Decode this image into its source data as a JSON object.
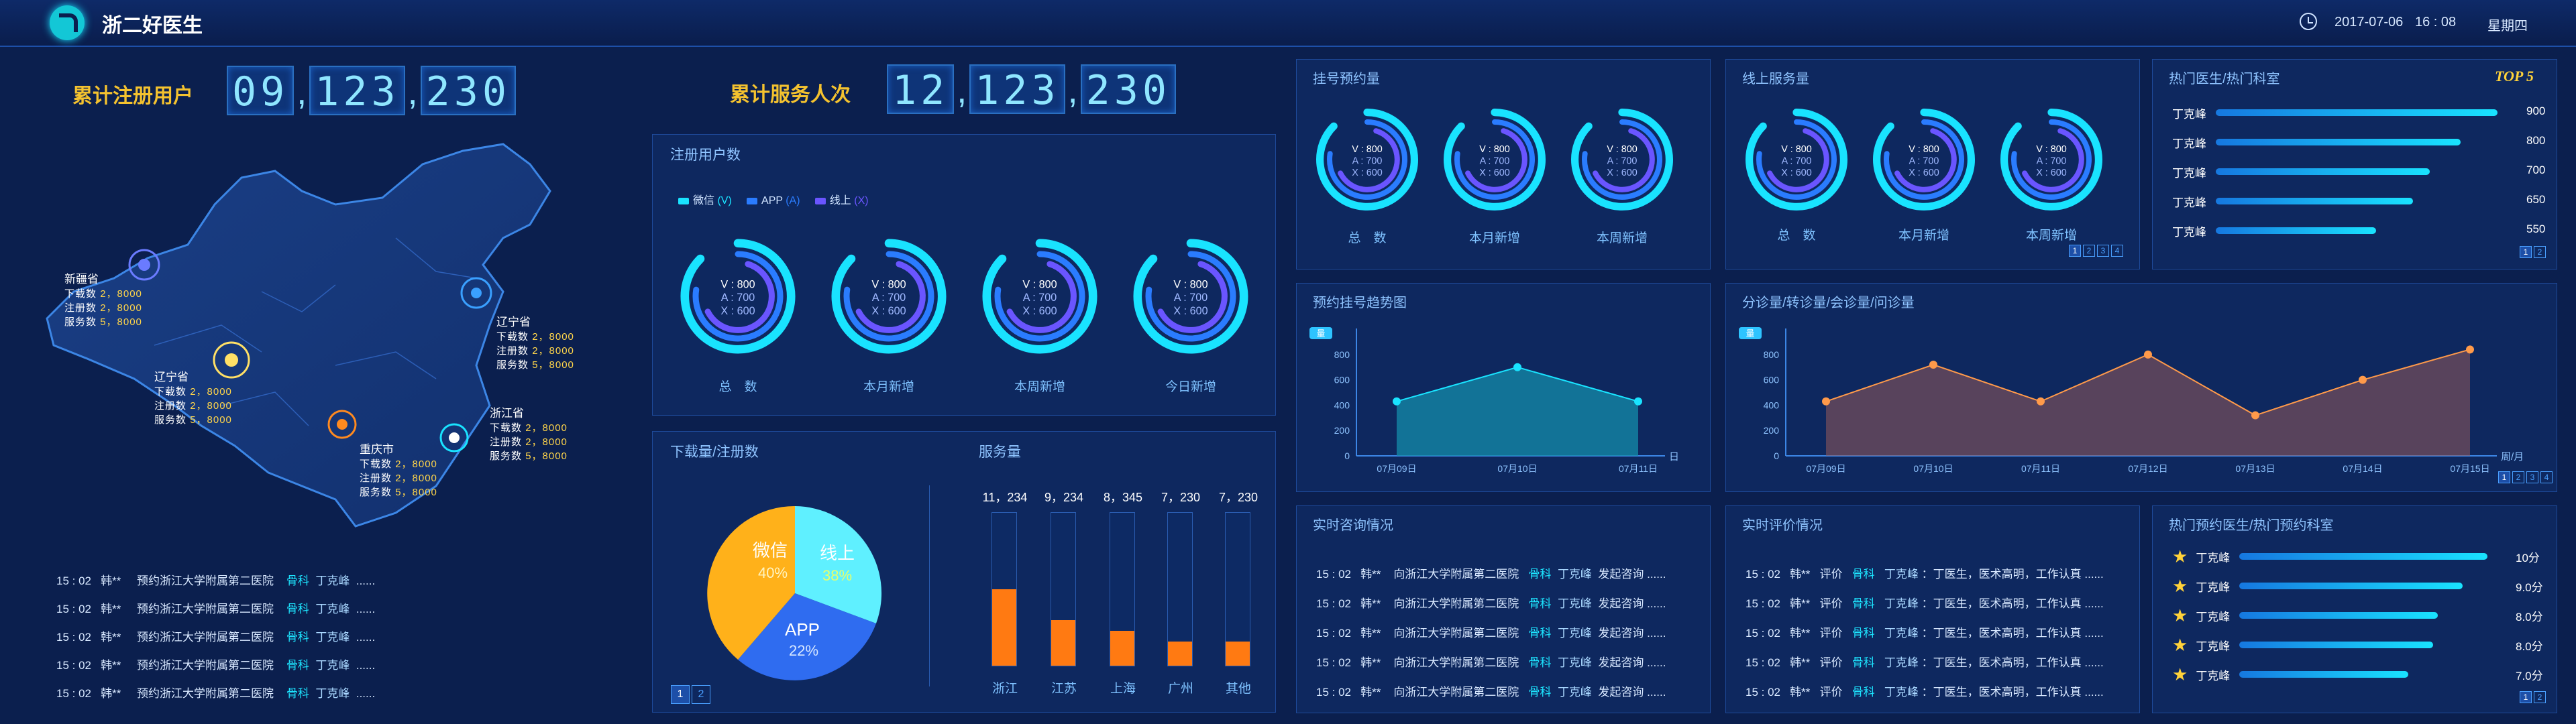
{
  "header": {
    "title": "浙二好医生",
    "date": "2017-07-06",
    "time": "16 : 08",
    "weekday": "星期四"
  },
  "stats": {
    "registered_label": "累计注册用户",
    "registered_groups": [
      "09",
      "123",
      "230"
    ],
    "served_label": "累计服务人次",
    "served_groups": [
      "12",
      "123",
      "230"
    ]
  },
  "map": {
    "cities": [
      {
        "name": "新疆省",
        "lines": [
          {
            "k": "下载数",
            "v": "2，8000"
          },
          {
            "k": "注册数",
            "v": "2，8000"
          },
          {
            "k": "服务数",
            "v": "5，8000"
          }
        ]
      },
      {
        "name": "辽宁省",
        "lines": [
          {
            "k": "下载数",
            "v": "2，8000"
          },
          {
            "k": "注册数",
            "v": "2，8000"
          },
          {
            "k": "服务数",
            "v": "5，8000"
          }
        ]
      },
      {
        "name": "辽宁省",
        "lines": [
          {
            "k": "下载数",
            "v": "2，8000"
          },
          {
            "k": "注册数",
            "v": "2，8000"
          },
          {
            "k": "服务数",
            "v": "5，8000"
          }
        ]
      },
      {
        "name": "重庆市",
        "lines": [
          {
            "k": "下载数",
            "v": "2，8000"
          },
          {
            "k": "注册数",
            "v": "2，8000"
          },
          {
            "k": "服务数",
            "v": "5，8000"
          }
        ]
      },
      {
        "name": "浙江省",
        "lines": [
          {
            "k": "下载数",
            "v": "2，8000"
          },
          {
            "k": "注册数",
            "v": "2，8000"
          },
          {
            "k": "服务数",
            "v": "5，8000"
          }
        ]
      }
    ]
  },
  "appointments_list": [
    {
      "time": "15 : 02",
      "user": "韩**",
      "text": "预约浙江大学附属第二医院",
      "dept": "骨科",
      "doctor": "丁克峰",
      "more": "......"
    },
    {
      "time": "15 : 02",
      "user": "韩**",
      "text": "预约浙江大学附属第二医院",
      "dept": "骨科",
      "doctor": "丁克峰",
      "more": "......"
    },
    {
      "time": "15 : 02",
      "user": "韩**",
      "text": "预约浙江大学附属第二医院",
      "dept": "骨科",
      "doctor": "丁克峰",
      "more": "......"
    },
    {
      "time": "15 : 02",
      "user": "韩**",
      "text": "预约浙江大学附属第二医院",
      "dept": "骨科",
      "doctor": "丁克峰",
      "more": "......"
    },
    {
      "time": "15 : 02",
      "user": "韩**",
      "text": "预约浙江大学附属第二医院",
      "dept": "骨科",
      "doctor": "丁克峰",
      "more": "......"
    }
  ],
  "registered_panel": {
    "title": "注册用户数",
    "legend": [
      {
        "label": "微信",
        "tag": "(V)",
        "color": "#19e3ff"
      },
      {
        "label": "APP",
        "tag": "(A)",
        "color": "#2a7cff"
      },
      {
        "label": "线上",
        "tag": "(X)",
        "color": "#6a55ff"
      }
    ],
    "rings": [
      {
        "label": "总　数",
        "v": "V : 800",
        "a": "A : 700",
        "x": "X : 600"
      },
      {
        "label": "本月新增",
        "v": "V : 800",
        "a": "A : 700",
        "x": "X : 600"
      },
      {
        "label": "本周新增",
        "v": "V : 800",
        "a": "A : 700",
        "x": "X : 600"
      },
      {
        "label": "今日新增",
        "v": "V : 800",
        "a": "A : 700",
        "x": "X : 600"
      }
    ]
  },
  "download_panel": {
    "title": "下载量/注册数",
    "pages": [
      "1",
      "2"
    ]
  },
  "pie_data": {
    "type": "pie",
    "slices": [
      {
        "label": "微信",
        "value": 40,
        "color": "#ffb11a"
      },
      {
        "label": "线上",
        "value": 38,
        "color": "#5ff0ff"
      },
      {
        "label": "APP",
        "value": 22,
        "color": "#2f6cf0"
      }
    ],
    "labels_text": {
      "weixin": "微信",
      "weixin_pct": "40%",
      "online": "线上",
      "online_pct": "38%",
      "app": "APP",
      "app_pct": "22%"
    }
  },
  "service_panel": {
    "title": "服务量"
  },
  "chart_data": [
    {
      "type": "bar",
      "title": "服务量",
      "categories": [
        "浙江",
        "江苏",
        "上海",
        "广州",
        "其他"
      ],
      "values": [
        11234,
        9234,
        8345,
        7230,
        7230
      ],
      "value_labels": [
        "11，234",
        "9，234",
        "8，345",
        "7，230",
        "7，230"
      ],
      "fill_fraction": [
        0.5,
        0.3,
        0.23,
        0.16,
        0.16
      ]
    },
    {
      "type": "area",
      "title": "预约挂号趋势图",
      "badge": "量",
      "x": [
        "07月09日",
        "07月10日",
        "07月11日"
      ],
      "y": [
        430,
        700,
        430
      ],
      "yticks": [
        "0",
        "200",
        "400",
        "600",
        "800"
      ],
      "xunit": "日",
      "ylim": [
        0,
        900
      ]
    },
    {
      "type": "area",
      "title": "分诊量/转诊量/会诊量/问诊量",
      "badge": "量",
      "x": [
        "07月09日",
        "07月10日",
        "07月11日",
        "07月12日",
        "07月13日",
        "07月14日",
        "07月15日"
      ],
      "y": [
        430,
        720,
        430,
        800,
        320,
        600,
        840
      ],
      "yticks": [
        "0",
        "200",
        "400",
        "600",
        "800"
      ],
      "xunit": "周/月",
      "ylim": [
        0,
        900
      ]
    }
  ],
  "booking_panel": {
    "title": "挂号预约量",
    "rings": [
      {
        "label": "总　数",
        "v": "V : 800",
        "a": "A : 700",
        "x": "X : 600"
      },
      {
        "label": "本月新增",
        "v": "V : 800",
        "a": "A : 700",
        "x": "X : 600"
      },
      {
        "label": "本周新增",
        "v": "V : 800",
        "a": "A : 700",
        "x": "X : 600"
      }
    ]
  },
  "online_panel": {
    "title": "线上服务量",
    "rings": [
      {
        "label": "总　数",
        "v": "V : 800",
        "a": "A : 700",
        "x": "X : 600"
      },
      {
        "label": "本月新增",
        "v": "V : 800",
        "a": "A : 700",
        "x": "X : 600"
      },
      {
        "label": "本周新增",
        "v": "V : 800",
        "a": "A : 700",
        "x": "X : 600"
      }
    ],
    "pages": [
      "1",
      "2",
      "3",
      "4"
    ]
  },
  "hot_panel": {
    "title": "热门医生/热门科室",
    "top": "TOP 5",
    "rows": [
      {
        "name": "丁克峰",
        "value": "900",
        "frac": 1.0
      },
      {
        "name": "丁克峰",
        "value": "800",
        "frac": 0.87
      },
      {
        "name": "丁克峰",
        "value": "700",
        "frac": 0.76
      },
      {
        "name": "丁克峰",
        "value": "650",
        "frac": 0.7
      },
      {
        "name": "丁克峰",
        "value": "550",
        "frac": 0.57
      }
    ],
    "pages": [
      "1",
      "2"
    ]
  },
  "trend_panel": {
    "title": "预约挂号趋势图"
  },
  "triage_panel": {
    "title": "分诊量/转诊量/会诊量/问诊量",
    "pages": [
      "1",
      "2",
      "3",
      "4"
    ]
  },
  "consult_panel": {
    "title": "实时咨询情况",
    "rows": [
      {
        "time": "15 : 02",
        "user": "韩**",
        "text": "向浙江大学附属第二医院",
        "dept": "骨科",
        "doctor": "丁克峰",
        "tail": "发起咨询 ......"
      },
      {
        "time": "15 : 02",
        "user": "韩**",
        "text": "向浙江大学附属第二医院",
        "dept": "骨科",
        "doctor": "丁克峰",
        "tail": "发起咨询 ......"
      },
      {
        "time": "15 : 02",
        "user": "韩**",
        "text": "向浙江大学附属第二医院",
        "dept": "骨科",
        "doctor": "丁克峰",
        "tail": "发起咨询 ......"
      },
      {
        "time": "15 : 02",
        "user": "韩**",
        "text": "向浙江大学附属第二医院",
        "dept": "骨科",
        "doctor": "丁克峰",
        "tail": "发起咨询 ......"
      },
      {
        "time": "15 : 02",
        "user": "韩**",
        "text": "向浙江大学附属第二医院",
        "dept": "骨科",
        "doctor": "丁克峰",
        "tail": "发起咨询 ......"
      }
    ]
  },
  "review_panel": {
    "title": "实时评价情况",
    "rows": [
      {
        "time": "15 : 02",
        "user": "韩**",
        "act": "评价",
        "dept": "骨科",
        "doctor": "丁克峰",
        "text": "：丁医生，医术高明，工作认真 ......"
      },
      {
        "time": "15 : 02",
        "user": "韩**",
        "act": "评价",
        "dept": "骨科",
        "doctor": "丁克峰",
        "text": "：丁医生，医术高明，工作认真 ......"
      },
      {
        "time": "15 : 02",
        "user": "韩**",
        "act": "评价",
        "dept": "骨科",
        "doctor": "丁克峰",
        "text": "：丁医生，医术高明，工作认真 ......"
      },
      {
        "time": "15 : 02",
        "user": "韩**",
        "act": "评价",
        "dept": "骨科",
        "doctor": "丁克峰",
        "text": "：丁医生，医术高明，工作认真 ......"
      },
      {
        "time": "15 : 02",
        "user": "韩**",
        "act": "评价",
        "dept": "骨科",
        "doctor": "丁克峰",
        "text": "：丁医生，医术高明，工作认真 ......"
      }
    ]
  },
  "hot_booking_panel": {
    "title": "热门预约医生/热门预约科室",
    "rows": [
      {
        "name": "丁克峰",
        "value": "10分",
        "frac": 1.0
      },
      {
        "name": "丁克峰",
        "value": "9.0分",
        "frac": 0.9
      },
      {
        "name": "丁克峰",
        "value": "8.0分",
        "frac": 0.8
      },
      {
        "name": "丁克峰",
        "value": "8.0分",
        "frac": 0.78
      },
      {
        "name": "丁克峰",
        "value": "7.0分",
        "frac": 0.68
      }
    ],
    "pages": [
      "1",
      "2"
    ]
  }
}
